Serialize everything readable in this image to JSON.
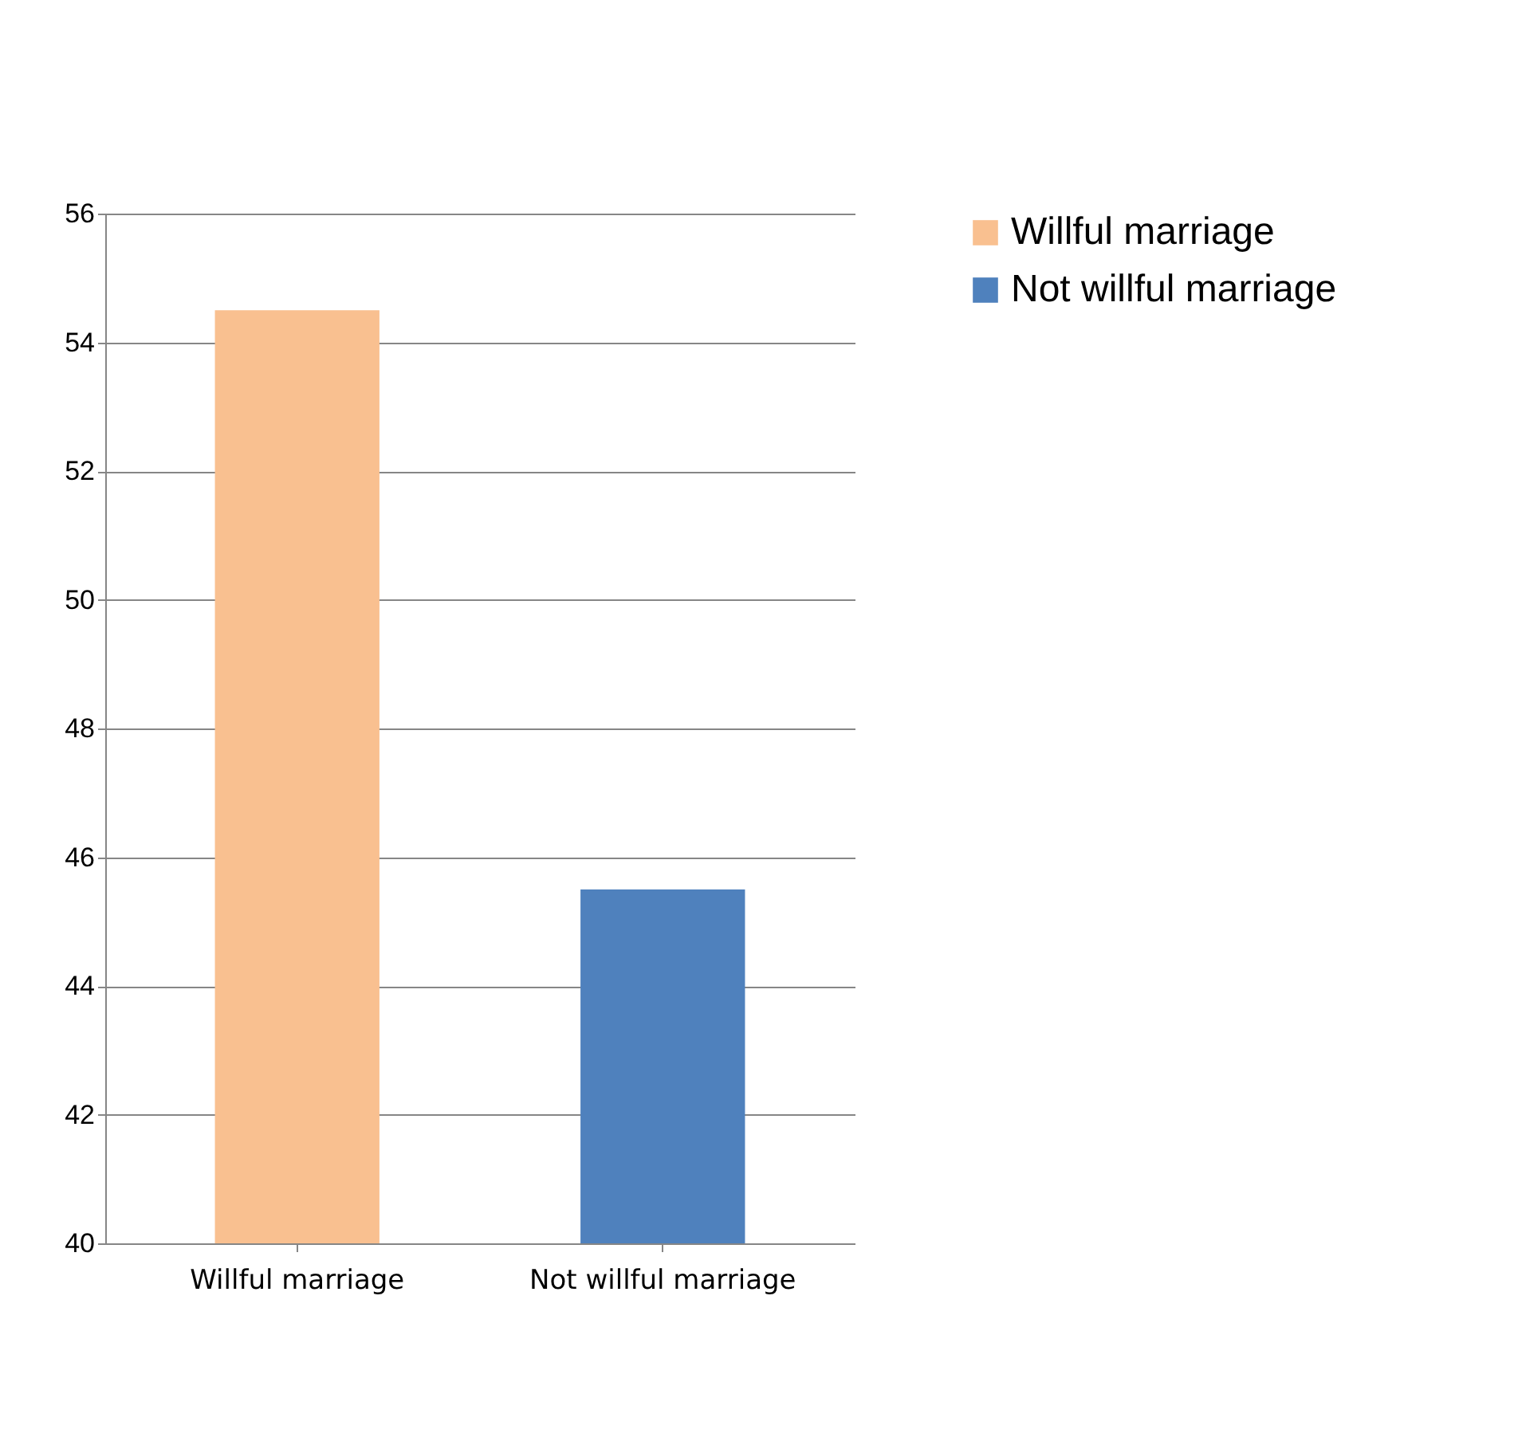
{
  "chart_data": {
    "type": "bar",
    "categories": [
      "Willful marriage",
      "Not willful marriage"
    ],
    "series": [
      {
        "name": "Willful marriage",
        "color": "#f9c090",
        "values": [
          54.5,
          null
        ]
      },
      {
        "name": "Not willful marriage",
        "color": "#4f81bd",
        "values": [
          null,
          45.5
        ]
      }
    ],
    "ylim": [
      40,
      56
    ],
    "yticks": [
      40,
      42,
      44,
      46,
      48,
      50,
      52,
      54,
      56
    ],
    "grid": "y",
    "legend": "right"
  }
}
